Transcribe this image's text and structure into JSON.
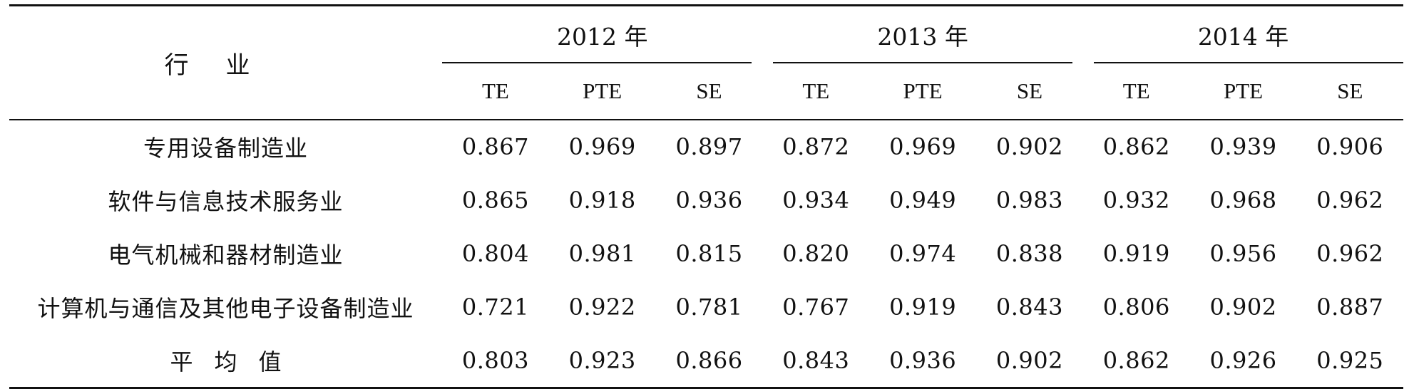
{
  "table": {
    "industry_header": "行业",
    "years": [
      {
        "label": "2012 年"
      },
      {
        "label": "2013 年"
      },
      {
        "label": "2014 年"
      }
    ],
    "metrics": [
      "TE",
      "PTE",
      "SE"
    ],
    "rows": [
      {
        "industry": "专用设备制造业",
        "values": [
          "0.867",
          "0.969",
          "0.897",
          "0.872",
          "0.969",
          "0.902",
          "0.862",
          "0.939",
          "0.906"
        ]
      },
      {
        "industry": "软件与信息技术服务业",
        "values": [
          "0.865",
          "0.918",
          "0.936",
          "0.934",
          "0.949",
          "0.983",
          "0.932",
          "0.968",
          "0.962"
        ]
      },
      {
        "industry": "电气机械和器材制造业",
        "values": [
          "0.804",
          "0.981",
          "0.815",
          "0.820",
          "0.974",
          "0.838",
          "0.919",
          "0.956",
          "0.962"
        ]
      },
      {
        "industry": "计算机与通信及其他电子设备制造业",
        "values": [
          "0.721",
          "0.922",
          "0.781",
          "0.767",
          "0.919",
          "0.843",
          "0.806",
          "0.902",
          "0.887"
        ]
      },
      {
        "industry": "平均值",
        "values": [
          "0.803",
          "0.923",
          "0.866",
          "0.843",
          "0.936",
          "0.902",
          "0.862",
          "0.926",
          "0.925"
        ]
      }
    ]
  }
}
